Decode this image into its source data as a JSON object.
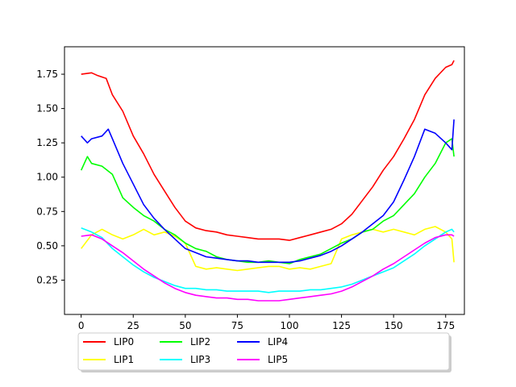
{
  "chart_data": {
    "type": "line",
    "title": "",
    "xlabel": "",
    "ylabel": "",
    "xlim": [
      -8,
      184
    ],
    "ylim": [
      0.0,
      1.95
    ],
    "xticks": [
      0,
      25,
      50,
      75,
      100,
      125,
      150,
      175
    ],
    "yticks": [
      0.25,
      0.5,
      0.75,
      1.0,
      1.25,
      1.5,
      1.75
    ],
    "xtick_labels": [
      "0",
      "25",
      "50",
      "75",
      "100",
      "125",
      "150",
      "175"
    ],
    "ytick_labels": [
      "0.25",
      "0.50",
      "0.75",
      "1.00",
      "1.25",
      "1.50",
      "1.75"
    ],
    "grid": false,
    "legend": {
      "placement": "below plot, centered, 5 columns",
      "ncol": 5
    },
    "series": [
      {
        "name": "LIP0",
        "color": "#ff0000",
        "points": [
          [
            0,
            1.75
          ],
          [
            5,
            1.76
          ],
          [
            8,
            1.74
          ],
          [
            12,
            1.72
          ],
          [
            15,
            1.6
          ],
          [
            20,
            1.48
          ],
          [
            25,
            1.3
          ],
          [
            30,
            1.17
          ],
          [
            35,
            1.02
          ],
          [
            40,
            0.9
          ],
          [
            45,
            0.78
          ],
          [
            50,
            0.68
          ],
          [
            55,
            0.63
          ],
          [
            60,
            0.61
          ],
          [
            65,
            0.6
          ],
          [
            70,
            0.58
          ],
          [
            75,
            0.57
          ],
          [
            80,
            0.56
          ],
          [
            85,
            0.55
          ],
          [
            90,
            0.55
          ],
          [
            95,
            0.55
          ],
          [
            100,
            0.54
          ],
          [
            105,
            0.56
          ],
          [
            110,
            0.58
          ],
          [
            115,
            0.6
          ],
          [
            120,
            0.62
          ],
          [
            125,
            0.66
          ],
          [
            130,
            0.73
          ],
          [
            135,
            0.83
          ],
          [
            140,
            0.93
          ],
          [
            145,
            1.05
          ],
          [
            150,
            1.15
          ],
          [
            155,
            1.28
          ],
          [
            160,
            1.42
          ],
          [
            165,
            1.6
          ],
          [
            170,
            1.72
          ],
          [
            175,
            1.8
          ],
          [
            178,
            1.82
          ],
          [
            179,
            1.85
          ]
        ]
      },
      {
        "name": "LIP1",
        "color": "#ffff00",
        "points": [
          [
            0,
            0.48
          ],
          [
            5,
            0.58
          ],
          [
            10,
            0.62
          ],
          [
            15,
            0.58
          ],
          [
            20,
            0.55
          ],
          [
            25,
            0.58
          ],
          [
            30,
            0.62
          ],
          [
            35,
            0.58
          ],
          [
            40,
            0.6
          ],
          [
            45,
            0.57
          ],
          [
            50,
            0.52
          ],
          [
            55,
            0.35
          ],
          [
            60,
            0.33
          ],
          [
            65,
            0.34
          ],
          [
            70,
            0.33
          ],
          [
            75,
            0.32
          ],
          [
            80,
            0.33
          ],
          [
            85,
            0.34
          ],
          [
            90,
            0.35
          ],
          [
            95,
            0.35
          ],
          [
            100,
            0.33
          ],
          [
            105,
            0.34
          ],
          [
            110,
            0.33
          ],
          [
            115,
            0.35
          ],
          [
            120,
            0.37
          ],
          [
            125,
            0.55
          ],
          [
            130,
            0.58
          ],
          [
            135,
            0.6
          ],
          [
            140,
            0.62
          ],
          [
            145,
            0.6
          ],
          [
            150,
            0.62
          ],
          [
            155,
            0.6
          ],
          [
            160,
            0.58
          ],
          [
            165,
            0.62
          ],
          [
            170,
            0.64
          ],
          [
            175,
            0.6
          ],
          [
            178,
            0.55
          ],
          [
            179,
            0.38
          ]
        ]
      },
      {
        "name": "LIP2",
        "color": "#00ff00",
        "points": [
          [
            0,
            1.05
          ],
          [
            3,
            1.15
          ],
          [
            5,
            1.1
          ],
          [
            10,
            1.08
          ],
          [
            15,
            1.02
          ],
          [
            20,
            0.85
          ],
          [
            25,
            0.78
          ],
          [
            30,
            0.72
          ],
          [
            35,
            0.68
          ],
          [
            40,
            0.62
          ],
          [
            45,
            0.58
          ],
          [
            50,
            0.52
          ],
          [
            55,
            0.48
          ],
          [
            60,
            0.46
          ],
          [
            65,
            0.42
          ],
          [
            70,
            0.4
          ],
          [
            75,
            0.39
          ],
          [
            80,
            0.38
          ],
          [
            85,
            0.38
          ],
          [
            90,
            0.39
          ],
          [
            95,
            0.38
          ],
          [
            100,
            0.37
          ],
          [
            105,
            0.4
          ],
          [
            110,
            0.42
          ],
          [
            115,
            0.44
          ],
          [
            120,
            0.48
          ],
          [
            125,
            0.52
          ],
          [
            130,
            0.55
          ],
          [
            135,
            0.6
          ],
          [
            140,
            0.62
          ],
          [
            145,
            0.68
          ],
          [
            150,
            0.72
          ],
          [
            155,
            0.8
          ],
          [
            160,
            0.88
          ],
          [
            165,
            1.0
          ],
          [
            170,
            1.1
          ],
          [
            175,
            1.25
          ],
          [
            178,
            1.28
          ],
          [
            179,
            1.15
          ]
        ]
      },
      {
        "name": "LIP3",
        "color": "#00ffff",
        "points": [
          [
            0,
            0.63
          ],
          [
            5,
            0.6
          ],
          [
            10,
            0.56
          ],
          [
            15,
            0.48
          ],
          [
            20,
            0.42
          ],
          [
            25,
            0.36
          ],
          [
            30,
            0.31
          ],
          [
            35,
            0.27
          ],
          [
            40,
            0.24
          ],
          [
            45,
            0.21
          ],
          [
            50,
            0.19
          ],
          [
            55,
            0.19
          ],
          [
            60,
            0.18
          ],
          [
            65,
            0.18
          ],
          [
            70,
            0.17
          ],
          [
            75,
            0.17
          ],
          [
            80,
            0.17
          ],
          [
            85,
            0.17
          ],
          [
            90,
            0.16
          ],
          [
            95,
            0.17
          ],
          [
            100,
            0.17
          ],
          [
            105,
            0.17
          ],
          [
            110,
            0.18
          ],
          [
            115,
            0.18
          ],
          [
            120,
            0.19
          ],
          [
            125,
            0.2
          ],
          [
            130,
            0.22
          ],
          [
            135,
            0.25
          ],
          [
            140,
            0.28
          ],
          [
            145,
            0.31
          ],
          [
            150,
            0.34
          ],
          [
            155,
            0.39
          ],
          [
            160,
            0.44
          ],
          [
            165,
            0.5
          ],
          [
            170,
            0.55
          ],
          [
            175,
            0.6
          ],
          [
            178,
            0.62
          ],
          [
            179,
            0.6
          ]
        ]
      },
      {
        "name": "LIP4",
        "color": "#0000ff",
        "points": [
          [
            0,
            1.3
          ],
          [
            3,
            1.25
          ],
          [
            5,
            1.28
          ],
          [
            10,
            1.3
          ],
          [
            13,
            1.35
          ],
          [
            15,
            1.28
          ],
          [
            20,
            1.1
          ],
          [
            25,
            0.95
          ],
          [
            30,
            0.8
          ],
          [
            35,
            0.7
          ],
          [
            40,
            0.62
          ],
          [
            45,
            0.55
          ],
          [
            50,
            0.48
          ],
          [
            55,
            0.45
          ],
          [
            60,
            0.42
          ],
          [
            65,
            0.41
          ],
          [
            70,
            0.4
          ],
          [
            75,
            0.39
          ],
          [
            80,
            0.39
          ],
          [
            85,
            0.38
          ],
          [
            90,
            0.38
          ],
          [
            95,
            0.38
          ],
          [
            100,
            0.38
          ],
          [
            105,
            0.39
          ],
          [
            110,
            0.41
          ],
          [
            115,
            0.43
          ],
          [
            120,
            0.46
          ],
          [
            125,
            0.5
          ],
          [
            130,
            0.55
          ],
          [
            135,
            0.6
          ],
          [
            140,
            0.66
          ],
          [
            145,
            0.72
          ],
          [
            150,
            0.82
          ],
          [
            155,
            0.98
          ],
          [
            160,
            1.15
          ],
          [
            165,
            1.35
          ],
          [
            170,
            1.32
          ],
          [
            175,
            1.25
          ],
          [
            178,
            1.2
          ],
          [
            179,
            1.42
          ]
        ]
      },
      {
        "name": "LIP5",
        "color": "#ff00ff",
        "points": [
          [
            0,
            0.57
          ],
          [
            5,
            0.58
          ],
          [
            10,
            0.55
          ],
          [
            15,
            0.5
          ],
          [
            20,
            0.45
          ],
          [
            25,
            0.39
          ],
          [
            30,
            0.33
          ],
          [
            35,
            0.28
          ],
          [
            40,
            0.23
          ],
          [
            45,
            0.19
          ],
          [
            50,
            0.16
          ],
          [
            55,
            0.14
          ],
          [
            60,
            0.13
          ],
          [
            65,
            0.12
          ],
          [
            70,
            0.12
          ],
          [
            75,
            0.11
          ],
          [
            80,
            0.11
          ],
          [
            85,
            0.1
          ],
          [
            90,
            0.1
          ],
          [
            95,
            0.1
          ],
          [
            100,
            0.11
          ],
          [
            105,
            0.12
          ],
          [
            110,
            0.13
          ],
          [
            115,
            0.14
          ],
          [
            120,
            0.15
          ],
          [
            125,
            0.17
          ],
          [
            130,
            0.2
          ],
          [
            135,
            0.24
          ],
          [
            140,
            0.28
          ],
          [
            145,
            0.33
          ],
          [
            150,
            0.37
          ],
          [
            155,
            0.42
          ],
          [
            160,
            0.47
          ],
          [
            165,
            0.52
          ],
          [
            170,
            0.56
          ],
          [
            175,
            0.58
          ],
          [
            178,
            0.58
          ],
          [
            179,
            0.57
          ]
        ]
      }
    ]
  }
}
